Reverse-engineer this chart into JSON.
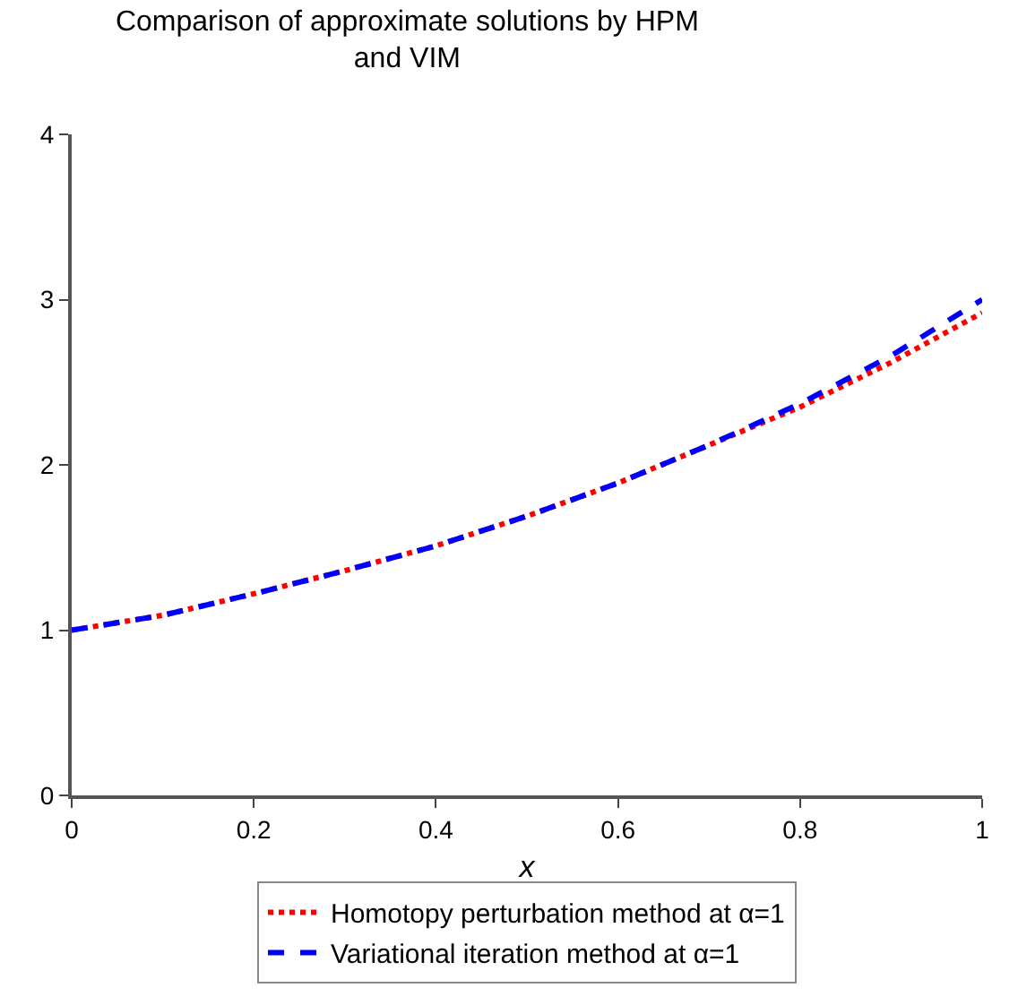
{
  "chart_data": {
    "type": "line",
    "title": "Comparison of approximate solutions by HPM and VIM",
    "xlabel": "x",
    "x": [
      0,
      0.1,
      0.2,
      0.3,
      0.4,
      0.5,
      0.6,
      0.7,
      0.8,
      0.9,
      1.0
    ],
    "series": [
      {
        "name": "Homotopy perturbation method at α=1",
        "color": "#ff0000",
        "line_style": "dotted",
        "values": [
          1,
          1.09,
          1.22,
          1.36,
          1.51,
          1.69,
          1.89,
          2.12,
          2.35,
          2.62,
          2.92
        ]
      },
      {
        "name": "Variational iteration method at α=1",
        "color": "#0000ff",
        "line_style": "dashed",
        "values": [
          1,
          1.09,
          1.22,
          1.36,
          1.51,
          1.69,
          1.89,
          2.12,
          2.37,
          2.66,
          3.0
        ]
      }
    ],
    "xlim": [
      0,
      1
    ],
    "xticks": [
      0,
      0.2,
      0.4,
      0.6,
      0.8,
      1
    ],
    "ylim": [
      0,
      4
    ],
    "yticks": [
      0,
      1,
      2,
      3,
      4
    ],
    "legend": "bottom",
    "marker": "none"
  }
}
